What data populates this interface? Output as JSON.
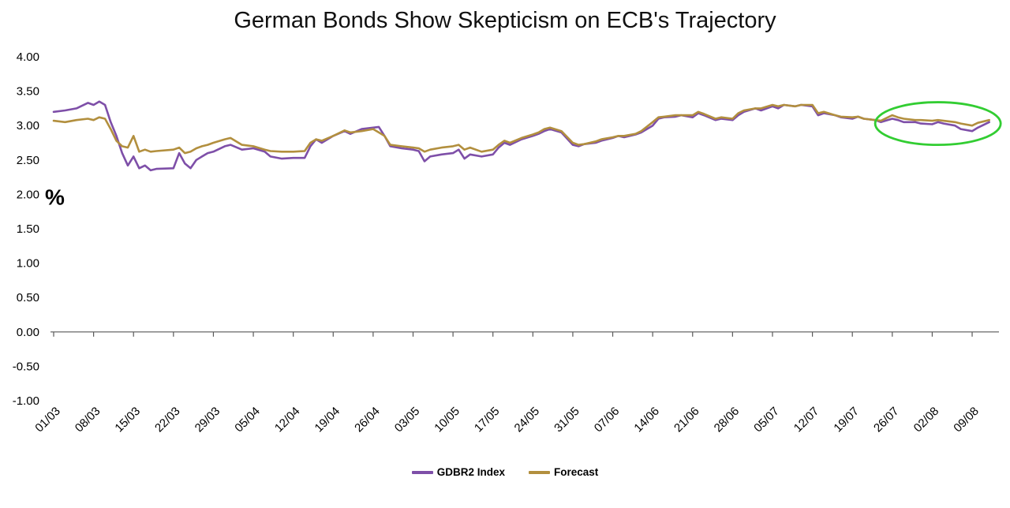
{
  "chart_data": {
    "type": "line",
    "title": "German Bonds Show Skepticism on ECB's Trajectory",
    "ylabel": "%",
    "ylim": [
      -1.0,
      4.0
    ],
    "grid": false,
    "legend_position": "bottom-center",
    "y_ticks": [
      4.0,
      3.5,
      3.0,
      2.5,
      2.0,
      1.5,
      1.0,
      0.5,
      0.0,
      -0.5,
      -1.0
    ],
    "x_tick_interval_days": 7,
    "x_tick_labels": [
      "01/03",
      "08/03",
      "15/03",
      "22/03",
      "29/03",
      "05/04",
      "12/04",
      "19/04",
      "26/04",
      "03/05",
      "10/05",
      "17/05",
      "24/05",
      "31/05",
      "07/06",
      "14/06",
      "21/06",
      "28/06",
      "05/07",
      "12/07",
      "19/07",
      "26/07",
      "02/08",
      "09/08"
    ],
    "x_unit": "days since 01/03",
    "x": [
      0,
      2,
      4,
      6,
      7,
      8,
      9,
      10,
      11,
      12,
      13,
      14,
      15,
      16,
      17,
      18,
      21,
      22,
      23,
      24,
      25,
      26,
      27,
      28,
      30,
      31,
      33,
      35,
      37,
      38,
      40,
      42,
      44,
      45,
      46,
      47,
      49,
      51,
      52,
      54,
      56,
      57,
      58,
      59,
      61,
      63,
      64,
      65,
      66,
      68,
      70,
      71,
      72,
      73,
      75,
      77,
      78,
      79,
      80,
      82,
      84,
      85,
      86,
      87,
      89,
      91,
      92,
      93,
      95,
      96,
      98,
      99,
      100,
      102,
      103,
      105,
      106,
      107,
      109,
      110,
      112,
      113,
      114,
      116,
      117,
      119,
      120,
      121,
      123,
      124,
      126,
      127,
      128,
      130,
      131,
      133,
      134,
      135,
      137,
      138,
      140,
      141,
      142,
      144,
      145,
      147,
      148,
      149,
      151,
      152,
      154,
      155,
      156,
      158,
      159,
      161,
      162,
      164
    ],
    "series": [
      {
        "name": "GDBR2 Index",
        "color": "#7e4fa8",
        "values": [
          3.2,
          3.22,
          3.25,
          3.33,
          3.3,
          3.35,
          3.3,
          3.05,
          2.85,
          2.6,
          2.42,
          2.55,
          2.38,
          2.42,
          2.35,
          2.37,
          2.38,
          2.6,
          2.45,
          2.38,
          2.5,
          2.55,
          2.6,
          2.62,
          2.7,
          2.72,
          2.65,
          2.67,
          2.62,
          2.55,
          2.52,
          2.53,
          2.53,
          2.7,
          2.8,
          2.75,
          2.85,
          2.92,
          2.88,
          2.95,
          2.97,
          2.98,
          2.85,
          2.7,
          2.67,
          2.65,
          2.63,
          2.48,
          2.55,
          2.58,
          2.6,
          2.65,
          2.52,
          2.58,
          2.55,
          2.58,
          2.68,
          2.75,
          2.72,
          2.8,
          2.85,
          2.88,
          2.92,
          2.95,
          2.9,
          2.72,
          2.7,
          2.73,
          2.75,
          2.78,
          2.82,
          2.85,
          2.83,
          2.87,
          2.9,
          3.0,
          3.1,
          3.12,
          3.13,
          3.15,
          3.12,
          3.18,
          3.15,
          3.08,
          3.1,
          3.08,
          3.15,
          3.2,
          3.25,
          3.22,
          3.28,
          3.25,
          3.3,
          3.28,
          3.3,
          3.28,
          3.15,
          3.18,
          3.15,
          3.12,
          3.1,
          3.13,
          3.1,
          3.08,
          3.05,
          3.1,
          3.08,
          3.05,
          3.05,
          3.03,
          3.02,
          3.05,
          3.03,
          3.0,
          2.95,
          2.92,
          2.97,
          3.05
        ]
      },
      {
        "name": "Forecast",
        "color": "#b28f3e",
        "values": [
          3.07,
          3.05,
          3.08,
          3.1,
          3.08,
          3.12,
          3.1,
          2.95,
          2.78,
          2.7,
          2.68,
          2.85,
          2.62,
          2.65,
          2.62,
          2.63,
          2.65,
          2.68,
          2.6,
          2.62,
          2.67,
          2.7,
          2.72,
          2.75,
          2.8,
          2.82,
          2.72,
          2.7,
          2.65,
          2.63,
          2.62,
          2.62,
          2.63,
          2.75,
          2.8,
          2.78,
          2.85,
          2.93,
          2.9,
          2.92,
          2.95,
          2.9,
          2.85,
          2.72,
          2.7,
          2.68,
          2.67,
          2.62,
          2.65,
          2.68,
          2.7,
          2.72,
          2.65,
          2.68,
          2.62,
          2.65,
          2.72,
          2.78,
          2.75,
          2.82,
          2.87,
          2.9,
          2.95,
          2.97,
          2.92,
          2.75,
          2.72,
          2.73,
          2.77,
          2.8,
          2.83,
          2.85,
          2.85,
          2.88,
          2.92,
          3.05,
          3.12,
          3.13,
          3.15,
          3.15,
          3.15,
          3.2,
          3.17,
          3.1,
          3.12,
          3.1,
          3.18,
          3.22,
          3.25,
          3.25,
          3.3,
          3.28,
          3.3,
          3.28,
          3.3,
          3.3,
          3.18,
          3.2,
          3.15,
          3.13,
          3.12,
          3.13,
          3.1,
          3.08,
          3.07,
          3.15,
          3.12,
          3.1,
          3.08,
          3.08,
          3.07,
          3.08,
          3.07,
          3.05,
          3.03,
          3.0,
          3.04,
          3.08
        ]
      }
    ],
    "annotation": {
      "type": "ellipse",
      "color": "#32cd32",
      "x_range_days": [
        144,
        166
      ],
      "y_range": [
        2.72,
        3.34
      ]
    }
  },
  "legend": {
    "items": [
      {
        "label": "GDBR2 Index",
        "color": "#7e4fa8"
      },
      {
        "label": "Forecast",
        "color": "#b28f3e"
      }
    ]
  }
}
